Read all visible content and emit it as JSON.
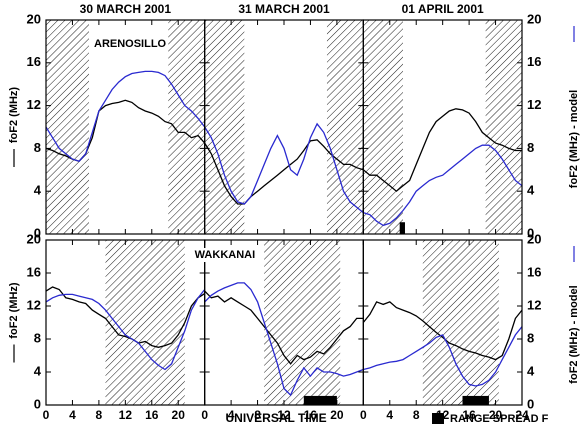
{
  "chart_data": [
    {
      "type": "line",
      "station": "ARENOSILLO",
      "y_label": "foF2 (MHz)",
      "y2_label": "foF2 (MHz) - model",
      "xlim": [
        0,
        24
      ],
      "xticks": [
        0,
        4,
        8,
        12,
        16,
        20,
        24
      ],
      "ylim": [
        0,
        20
      ],
      "yticks": [
        0,
        4,
        8,
        12,
        16,
        20
      ],
      "y2lim": [
        0,
        20
      ],
      "y2ticks": [
        0,
        4,
        8,
        12,
        16,
        20
      ],
      "x": [
        0,
        1,
        2,
        3,
        4,
        5,
        6,
        7,
        8,
        9,
        10,
        11,
        12,
        13,
        14,
        15,
        16,
        17,
        18,
        19,
        20,
        21,
        22,
        23,
        24
      ],
      "panels": [
        {
          "title": "30 MARCH 2001",
          "night": [
            [
              0,
              6.5
            ],
            [
              18.5,
              24
            ]
          ],
          "spread_f": [],
          "series": [
            {
              "color": "#000000",
              "values": [
                8,
                7.8,
                7.5,
                7.3,
                7.0,
                6.8,
                7.5,
                9,
                11.5,
                12,
                12.2,
                12.3,
                12.5,
                12.3,
                11.8,
                11.5,
                11.3,
                11.0,
                10.5,
                10.3,
                9.5,
                9.5,
                9.0,
                9.2,
                8.5
              ]
            },
            {
              "color": "#2a2ad0",
              "axis": "y2",
              "values": [
                10,
                9,
                8,
                7.5,
                7,
                6.8,
                7.5,
                9.5,
                11.5,
                12.5,
                13.5,
                14.2,
                14.7,
                15,
                15.1,
                15.2,
                15.2,
                15.1,
                14.8,
                14,
                13,
                12,
                11.5,
                10.8,
                10
              ]
            }
          ]
        },
        {
          "title": "31 MARCH 2001",
          "night": [
            [
              0,
              6
            ],
            [
              18.5,
              24
            ]
          ],
          "spread_f": [],
          "series": [
            {
              "color": "#000000",
              "values": [
                8.5,
                7.5,
                6,
                4.5,
                3.5,
                2.8,
                2.8,
                3.5,
                4,
                4.5,
                5,
                5.5,
                6,
                6.5,
                7,
                7.8,
                8.7,
                8.8,
                8.2,
                7.5,
                7,
                6.5,
                6.5,
                6.2,
                6
              ]
            },
            {
              "color": "#2a2ad0",
              "axis": "y2",
              "values": [
                10,
                9,
                7.5,
                5.5,
                4,
                3,
                2.8,
                3.5,
                5,
                6.5,
                8,
                9.2,
                8,
                6,
                5.5,
                7,
                9,
                10.3,
                9.5,
                8,
                6,
                4,
                3,
                2.5,
                2
              ]
            }
          ]
        },
        {
          "title": "01 APRIL 2001",
          "night": [
            [
              0,
              6
            ],
            [
              18.5,
              24
            ]
          ],
          "spread_f": [
            [
              5.5,
              6.3
            ]
          ],
          "series": [
            {
              "color": "#000000",
              "values": [
                6,
                5.5,
                5.5,
                5,
                4.5,
                4,
                4.5,
                5,
                6.5,
                8,
                9.5,
                10.5,
                11,
                11.5,
                11.7,
                11.6,
                11.3,
                10.5,
                9.5,
                9,
                8.5,
                8.3,
                8,
                7.8,
                7.8
              ]
            },
            {
              "color": "#2a2ad0",
              "axis": "y2",
              "values": [
                2,
                1.8,
                1.2,
                0.8,
                1,
                1.5,
                2.2,
                3,
                4,
                4.5,
                5,
                5.3,
                5.5,
                6,
                6.5,
                7,
                7.5,
                8,
                8.3,
                8.3,
                7.8,
                7,
                6,
                5,
                4.5
              ]
            }
          ]
        }
      ]
    },
    {
      "type": "line",
      "station": "WAKKANAI",
      "y_label": "foF2 (MHz)",
      "y2_label": "foF2 (MHz) - model",
      "x_label": "UNIVERSAL TIME",
      "legend": "RANGE SPREAD F",
      "xlim": [
        0,
        24
      ],
      "xticks": [
        0,
        4,
        8,
        12,
        16,
        20,
        24
      ],
      "ylim": [
        0,
        20
      ],
      "yticks": [
        0,
        4,
        8,
        12,
        16,
        20
      ],
      "y2lim": [
        0,
        20
      ],
      "y2ticks": [
        0,
        4,
        8,
        12,
        16,
        20
      ],
      "x": [
        0,
        1,
        2,
        3,
        4,
        5,
        6,
        7,
        8,
        9,
        10,
        11,
        12,
        13,
        14,
        15,
        16,
        17,
        18,
        19,
        20,
        21,
        22,
        23,
        24
      ],
      "panels": [
        {
          "night": [
            [
              9,
              21
            ]
          ],
          "spread_f": [],
          "series": [
            {
              "color": "#000000",
              "values": [
                13.8,
                14.3,
                14,
                13,
                12.8,
                12.5,
                12.3,
                11.5,
                11,
                10.5,
                9.5,
                8.5,
                8.3,
                8.0,
                7.5,
                7.7,
                7.2,
                7,
                7.2,
                7.5,
                8.5,
                10,
                12,
                13,
                13.5
              ]
            },
            {
              "color": "#2a2ad0",
              "axis": "y2",
              "values": [
                12.5,
                13,
                13.3,
                13.4,
                13.4,
                13.2,
                13,
                12.8,
                12.3,
                11.5,
                10.5,
                9.5,
                8.5,
                8,
                7.5,
                6.5,
                5.5,
                4.8,
                4.3,
                5,
                7,
                9,
                11.5,
                13,
                14
              ]
            }
          ]
        },
        {
          "night": [
            [
              9,
              20.5
            ]
          ],
          "spread_f": [
            [
              15,
              20
            ]
          ],
          "series": [
            {
              "color": "#000000",
              "values": [
                13.8,
                13,
                13.2,
                12.5,
                13,
                12.5,
                12,
                11.5,
                10.5,
                9.5,
                8.5,
                7.5,
                6,
                5,
                6,
                5.5,
                5.8,
                6.5,
                6.2,
                7,
                8,
                9,
                9.5,
                10.5,
                10.5
              ]
            },
            {
              "color": "#2a2ad0",
              "axis": "y2",
              "values": [
                12.5,
                13.3,
                13.8,
                14.2,
                14.5,
                14.8,
                14.8,
                14,
                12.5,
                10,
                7.5,
                5,
                2,
                1.2,
                3,
                4.5,
                3.5,
                4.5,
                4,
                4,
                3.8,
                3.5,
                3.7,
                4,
                4.3
              ]
            }
          ]
        },
        {
          "night": [
            [
              9,
              20.5
            ]
          ],
          "spread_f": [
            [
              15,
              19
            ]
          ],
          "series": [
            {
              "color": "#000000",
              "values": [
                10,
                11,
                12.5,
                12.2,
                12.5,
                11.8,
                11.5,
                11.2,
                10.8,
                10.2,
                9.5,
                8.8,
                8.2,
                7.5,
                7.2,
                6.8,
                6.5,
                6.3,
                6,
                5.8,
                5.5,
                6,
                8,
                10.5,
                11.5
              ]
            },
            {
              "color": "#2a2ad0",
              "axis": "y2",
              "values": [
                4.3,
                4.5,
                4.8,
                5,
                5.2,
                5.3,
                5.5,
                6,
                6.5,
                7,
                7.5,
                8.2,
                8.5,
                7,
                5,
                3.5,
                2.5,
                2.3,
                2.5,
                3,
                4,
                5.5,
                7,
                8.5,
                9.5
              ]
            }
          ]
        }
      ]
    }
  ]
}
